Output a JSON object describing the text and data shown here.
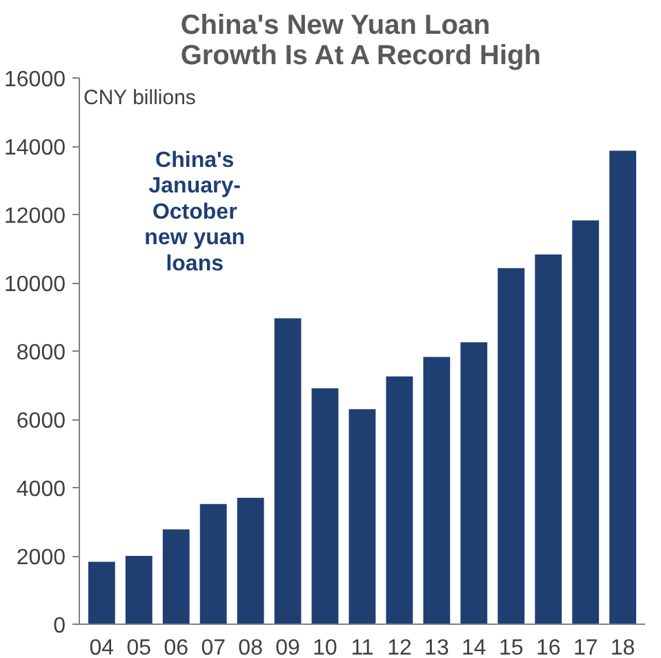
{
  "chart_data": {
    "type": "bar",
    "title": "China's New Yuan Loan\nGrowth Is At A Record High",
    "ylabel": "CNY billions",
    "annotations": [
      "China's\nJanuary-\nOctober\nnew yuan\nloans"
    ],
    "categories": [
      "04",
      "05",
      "06",
      "07",
      "08",
      "09",
      "10",
      "11",
      "12",
      "13",
      "14",
      "15",
      "16",
      "17",
      "18"
    ],
    "values": [
      1830,
      2000,
      2780,
      3520,
      3700,
      8960,
      6910,
      6300,
      7260,
      7830,
      8260,
      10430,
      10830,
      11830,
      13870
    ],
    "color": "#1f3f73",
    "ylim": [
      0,
      16000
    ],
    "yticks": [
      0,
      2000,
      4000,
      6000,
      8000,
      10000,
      12000,
      14000,
      16000
    ],
    "grid": false
  }
}
